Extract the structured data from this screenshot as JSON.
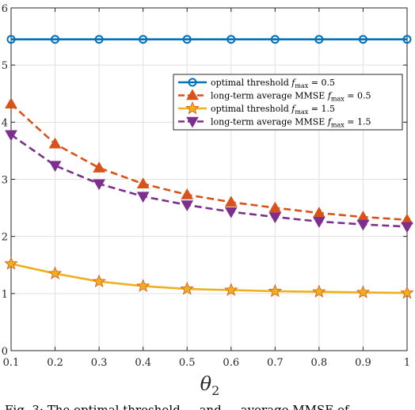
{
  "chart_data": {
    "type": "line",
    "xlabel": "θ2",
    "ylabel": "",
    "xlim": [
      0.1,
      1
    ],
    "ylim": [
      0,
      6
    ],
    "x": [
      0.1,
      0.2,
      0.3,
      0.4,
      0.5,
      0.6,
      0.7,
      0.8,
      0.9,
      1.0
    ],
    "x_ticks": [
      "0.1",
      "0.2",
      "0.3",
      "0.4",
      "0.5",
      "0.6",
      "0.7",
      "0.8",
      "0.9",
      "1"
    ],
    "y_ticks": [
      "0",
      "1",
      "2",
      "3",
      "4",
      "5",
      "6"
    ],
    "grid": true,
    "legend_position": "top-right",
    "series": [
      {
        "name": "optimal threshold fmax = 0.5",
        "legend_text": "optimal threshold ",
        "legend_f": "f",
        "legend_sub": "max",
        "legend_eq": " = 0.5",
        "values": [
          5.45,
          5.45,
          5.45,
          5.45,
          5.45,
          5.45,
          5.45,
          5.45,
          5.45,
          5.45
        ],
        "color": "#0072BD",
        "marker": "circle",
        "dash": "solid"
      },
      {
        "name": "long-term average MMSE fmax = 0.5",
        "legend_text": "long-term average MMSE ",
        "legend_f": "f",
        "legend_sub": "max",
        "legend_eq": " = 0.5",
        "values": [
          4.32,
          3.62,
          3.2,
          2.92,
          2.73,
          2.6,
          2.5,
          2.41,
          2.34,
          2.29
        ],
        "color": "#D95319",
        "marker": "triangle-up",
        "dash": "dashed"
      },
      {
        "name": "optimal threshold fmax = 1.5",
        "legend_text": "optimal threshold ",
        "legend_f": "f",
        "legend_sub": "max",
        "legend_eq": " = 1.5",
        "values": [
          1.52,
          1.35,
          1.21,
          1.13,
          1.08,
          1.06,
          1.04,
          1.03,
          1.02,
          1.01
        ],
        "color": "#EDB120",
        "marker": "star",
        "dash": "solid"
      },
      {
        "name": "long-term average MMSE fmax = 1.5",
        "legend_text": "long-term average MMSE ",
        "legend_f": "f",
        "legend_sub": "max",
        "legend_eq": " = 1.5",
        "values": [
          3.78,
          3.24,
          2.92,
          2.7,
          2.55,
          2.43,
          2.34,
          2.26,
          2.21,
          2.17
        ],
        "color": "#7E2F8E",
        "marker": "triangle-down",
        "dash": "dashed"
      }
    ]
  },
  "caption": "Fig. 3: The optimal threshold ... and ... average MMSE of ..."
}
